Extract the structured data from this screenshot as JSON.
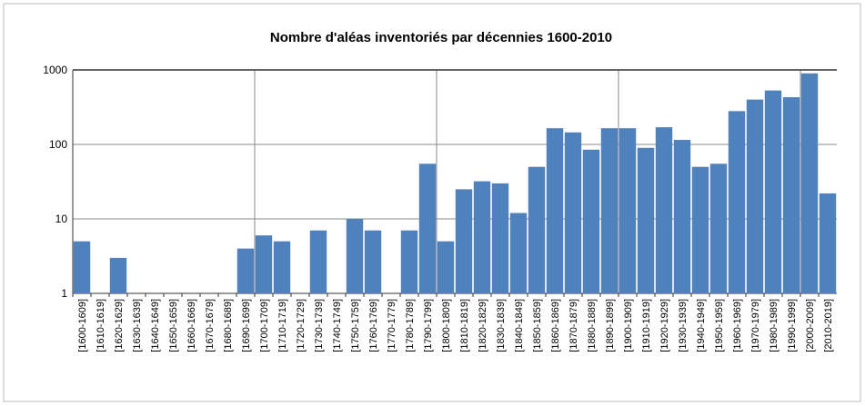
{
  "chart_data": {
    "type": "bar",
    "title": "Nombre d'aléas inventoriés par décennies 1600-2010",
    "categories": [
      "[1600-1609]",
      "[1610-1619]",
      "[1620-1629]",
      "[1630-1639]",
      "[1640-1649]",
      "[1650-1659]",
      "[1660-1669]",
      "[1670-1679]",
      "[1680-1689]",
      "[1690-1699]",
      "[1700-1709]",
      "[1710-1719]",
      "[1720-1729]",
      "[1730-1739]",
      "[1740-1749]",
      "[1750-1759]",
      "[1760-1769]",
      "[1770-1779]",
      "[1780-1789]",
      "[1790-1799]",
      "[1800-1809]",
      "[1810-1819]",
      "[1820-1829]",
      "[1830-1839]",
      "[1840-1849]",
      "[1850-1859]",
      "[1860-1869]",
      "[1870-1879]",
      "[1880-1889]",
      "[1890-1899]",
      "[1900-1909]",
      "[1910-1919]",
      "[1920-1929]",
      "[1930-1939]",
      "[1940-1949]",
      "[1950-1959]",
      "[1960-1969]",
      "[1970-1979]",
      "[1980-1989]",
      "[1990-1999]",
      "[2000-2009]",
      "[2010-2019]"
    ],
    "values": [
      5,
      1,
      3,
      1,
      1,
      1,
      1,
      1,
      1,
      4,
      6,
      5,
      1,
      7,
      1,
      10,
      7,
      1,
      7,
      55,
      5,
      25,
      32,
      30,
      12,
      50,
      165,
      145,
      85,
      165,
      165,
      90,
      170,
      115,
      50,
      55,
      280,
      400,
      530,
      430,
      900,
      22
    ],
    "color": "#4f81bd",
    "ylim": [
      1,
      1000
    ],
    "yticks": [
      1,
      10,
      100,
      1000
    ],
    "log": true,
    "grid": true
  }
}
